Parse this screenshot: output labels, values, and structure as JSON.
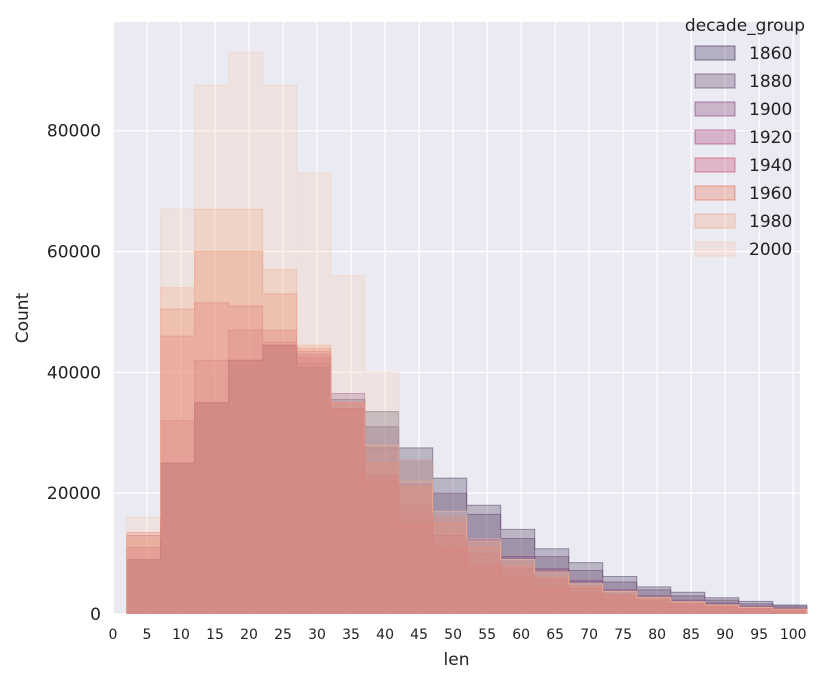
{
  "chart_data": {
    "type": "step-histogram",
    "xlabel": "len",
    "ylabel": "Count",
    "xlim": [
      0,
      101
    ],
    "ylim": [
      0,
      98000
    ],
    "x_ticks": [
      0,
      5,
      10,
      15,
      20,
      25,
      30,
      35,
      40,
      45,
      50,
      55,
      60,
      65,
      70,
      75,
      80,
      85,
      90,
      95,
      100
    ],
    "y_ticks": [
      0,
      20000,
      40000,
      60000,
      80000
    ],
    "y_tick_labels": [
      "0",
      "20000",
      "40000",
      "60000",
      "80000"
    ],
    "grid": true,
    "legend": {
      "title": "decade_group",
      "position": "top-right"
    },
    "bin_edges": [
      2,
      7,
      12,
      17,
      22,
      27,
      32,
      37,
      42,
      47,
      52,
      57,
      62,
      67,
      72,
      77,
      82,
      87,
      92,
      97,
      102
    ],
    "series": [
      {
        "name": "1860",
        "color": "#3d2a4f",
        "values": [
          9000,
          25000,
          35000,
          42000,
          44500,
          40800,
          34000,
          33500,
          27500,
          22500,
          18000,
          14000,
          10800,
          8500,
          6200,
          4500,
          3600,
          2700,
          2100,
          1500
        ]
      },
      {
        "name": "1880",
        "color": "#5e3a65",
        "values": [
          9000,
          25000,
          35000,
          42000,
          44500,
          41500,
          35500,
          31000,
          25500,
          20000,
          16500,
          12500,
          9500,
          7200,
          5300,
          4000,
          3000,
          2300,
          1700,
          1300
        ]
      },
      {
        "name": "1900",
        "color": "#7d3a6e",
        "values": [
          9000,
          25000,
          35000,
          42000,
          44500,
          42500,
          36500,
          27500,
          21500,
          16000,
          12500,
          9500,
          7500,
          5500,
          4000,
          3000,
          2300,
          1800,
          1300,
          1000
        ]
      },
      {
        "name": "1920",
        "color": "#a4386f",
        "values": [
          11000,
          32000,
          42000,
          47000,
          45000,
          43000,
          35000,
          23000,
          18000,
          13000,
          10000,
          7600,
          5700,
          4200,
          3100,
          2300,
          1700,
          1300,
          1000,
          800
        ]
      },
      {
        "name": "1940",
        "color": "#c83e66",
        "values": [
          13000,
          46000,
          51500,
          51000,
          47000,
          43500,
          34000,
          22000,
          15000,
          11000,
          8000,
          6000,
          4500,
          3300,
          2500,
          1800,
          1400,
          1100,
          800,
          600
        ]
      },
      {
        "name": "1960",
        "color": "#e76b4a",
        "values": [
          13500,
          50500,
          60000,
          60000,
          53000,
          44000,
          35000,
          25000,
          21000,
          15000,
          11000,
          8000,
          6000,
          4500,
          3300,
          2500,
          1800,
          1400,
          1000,
          700
        ]
      },
      {
        "name": "1980",
        "color": "#f3a27f",
        "values": [
          12500,
          54000,
          67000,
          67000,
          57000,
          44500,
          35000,
          28000,
          22000,
          16000,
          12000,
          9000,
          7000,
          5000,
          3800,
          2800,
          2100,
          1500,
          1100,
          800
        ]
      },
      {
        "name": "2000",
        "color": "#f6cbb4",
        "values": [
          16000,
          67000,
          87500,
          93000,
          87500,
          73000,
          56000,
          40000,
          25500,
          17000,
          12500,
          9000,
          6800,
          5000,
          3700,
          2700,
          2000,
          1500,
          1100,
          800
        ]
      }
    ]
  }
}
